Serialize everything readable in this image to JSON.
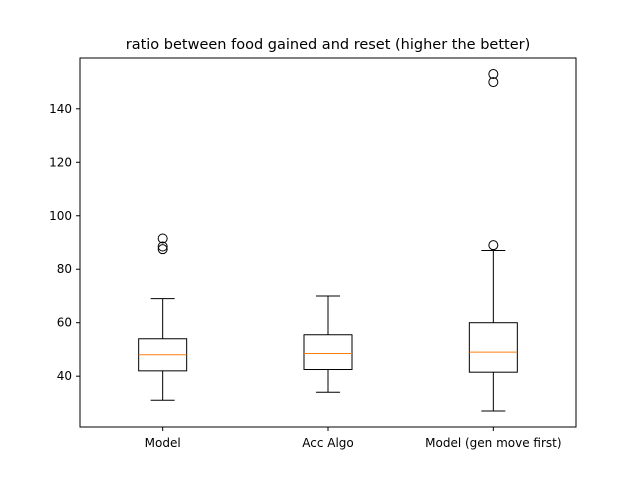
{
  "chart_data": {
    "type": "boxplot",
    "title": "ratio between food gained and reset (higher the better)",
    "xlabel": "",
    "ylabel": "",
    "categories": [
      "Model",
      "Acc Algo",
      "Model (gen move first)"
    ],
    "boxes": [
      {
        "whisker_low": 31,
        "q1": 42,
        "median": 48,
        "q3": 54,
        "whisker_high": 69,
        "outliers": [
          87.5,
          88.5,
          91.5
        ]
      },
      {
        "whisker_low": 34,
        "q1": 42.5,
        "median": 48.5,
        "q3": 55.5,
        "whisker_high": 70,
        "outliers": []
      },
      {
        "whisker_low": 27,
        "q1": 41.5,
        "median": 49,
        "q3": 60,
        "whisker_high": 87,
        "outliers": [
          89,
          150,
          153
        ]
      }
    ],
    "ylim": [
      21,
      159
    ],
    "yticks": [
      40,
      60,
      80,
      100,
      120,
      140
    ],
    "grid": false,
    "colors": {
      "box": "#000000",
      "median": "#ff7f0e",
      "outlier": "#000000"
    }
  }
}
